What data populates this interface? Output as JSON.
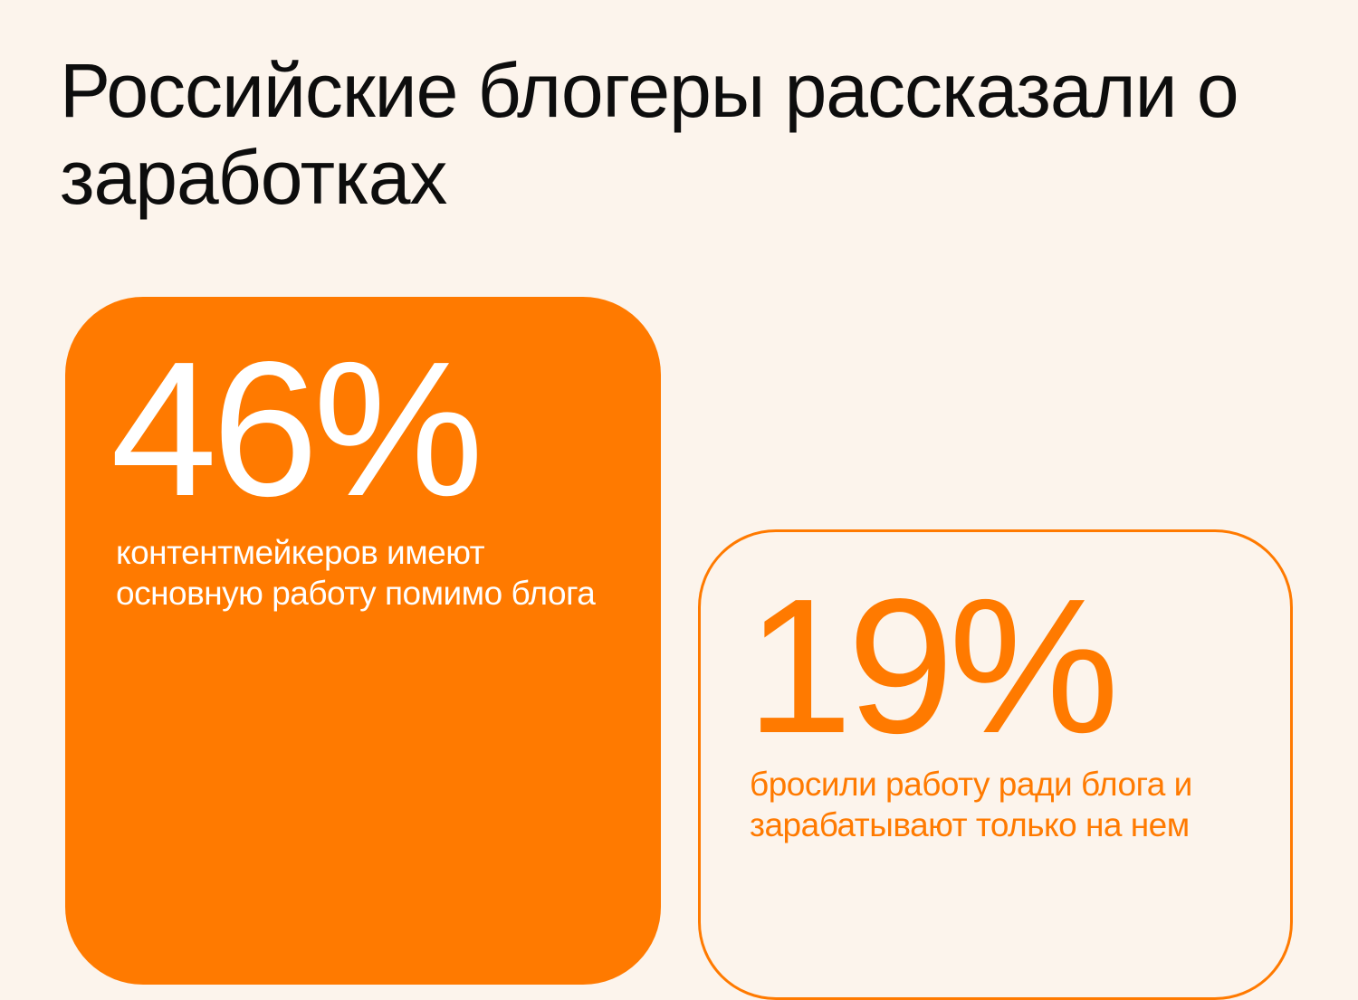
{
  "title": "Российские блогеры рассказали о заработках",
  "colors": {
    "background": "#fcf4ec",
    "accent": "#ff7a00",
    "text": "#0d0d0d"
  },
  "stats": [
    {
      "value": "46%",
      "description": "контентмейкеров имеют основную работу помимо блога"
    },
    {
      "value": "19%",
      "description": "бросили работу ради блога и зарабатывают только на нем"
    }
  ]
}
